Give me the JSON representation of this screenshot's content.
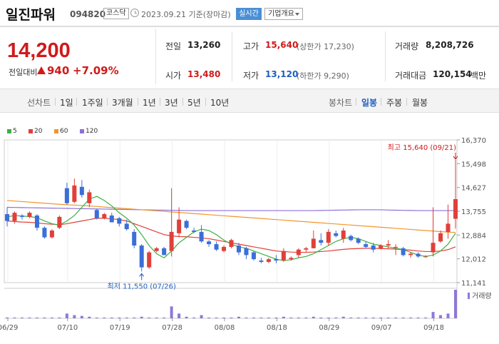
{
  "header": {
    "company": "일진파워",
    "code": "094820",
    "market": "코스닥",
    "date": "2023.09.21 기준(장마감)",
    "realtime_label": "실시간",
    "company_info_label": "기업개요"
  },
  "quote": {
    "price": "14,200",
    "change_label": "전일대비",
    "change": "940",
    "change_pct": "+7.09%",
    "prev_close_label": "전일",
    "prev_close": "13,260",
    "open_label": "시가",
    "open": "13,480",
    "high_label": "고가",
    "high": "15,640",
    "upper_limit": "(상한가 17,230)",
    "low_label": "저가",
    "low": "13,120",
    "lower_limit": "(하한가 9,290)",
    "volume_label": "거래량",
    "volume": "8,208,726",
    "amount_label": "거래대금",
    "amount": "120,154",
    "amount_unit": "백만"
  },
  "tabs": {
    "line_label": "선차트",
    "line_periods": [
      "1일",
      "1주일",
      "3개월",
      "1년",
      "3년",
      "5년",
      "10년"
    ],
    "candle_label": "봉차트",
    "candle_periods": [
      "일봉",
      "주봉",
      "월봉"
    ],
    "active_candle": "일봉"
  },
  "chart_data": {
    "type": "candlestick",
    "legend": [
      {
        "name": "5",
        "color": "#3cb043"
      },
      {
        "name": "20",
        "color": "#e0403a"
      },
      {
        "name": "60",
        "color": "#f0962e"
      },
      {
        "name": "120",
        "color": "#8e6fd8"
      }
    ],
    "y_ticks": [
      "16,370",
      "15,498",
      "14,627",
      "13,755",
      "12,884",
      "12,012",
      "11,141"
    ],
    "ylim": [
      11141,
      16370
    ],
    "x_ticks": [
      "06/29",
      "07/10",
      "07/19",
      "07/28",
      "08/08",
      "08/18",
      "08/29",
      "09/07",
      "09/18"
    ],
    "high_annotation": "최고 15,640 (09/21)",
    "low_annotation": "최저 11,550 (07/26)",
    "volume_label": "거래량",
    "candles": [
      {
        "o": 13650,
        "h": 13900,
        "l": 13200,
        "c": 13400
      },
      {
        "o": 13400,
        "h": 13750,
        "l": 13300,
        "c": 13700
      },
      {
        "o": 13600,
        "h": 13650,
        "l": 13450,
        "c": 13550
      },
      {
        "o": 13550,
        "h": 13750,
        "l": 13500,
        "c": 13700
      },
      {
        "o": 13600,
        "h": 13650,
        "l": 13050,
        "c": 13150
      },
      {
        "o": 13150,
        "h": 13200,
        "l": 12750,
        "c": 12800
      },
      {
        "o": 12800,
        "h": 13100,
        "l": 12750,
        "c": 13050
      },
      {
        "o": 13150,
        "h": 13600,
        "l": 13100,
        "c": 13550
      },
      {
        "o": 14600,
        "h": 14800,
        "l": 14000,
        "c": 14050
      },
      {
        "o": 14100,
        "h": 14950,
        "l": 14050,
        "c": 14700
      },
      {
        "o": 14650,
        "h": 14900,
        "l": 14250,
        "c": 14350
      },
      {
        "o": 14050,
        "h": 14550,
        "l": 13900,
        "c": 14450
      },
      {
        "o": 13800,
        "h": 13850,
        "l": 13450,
        "c": 13500
      },
      {
        "o": 13500,
        "h": 13700,
        "l": 13450,
        "c": 13650
      },
      {
        "o": 13600,
        "h": 13700,
        "l": 13350,
        "c": 13350
      },
      {
        "o": 13500,
        "h": 13550,
        "l": 13200,
        "c": 13300
      },
      {
        "o": 13300,
        "h": 13450,
        "l": 13050,
        "c": 13100
      },
      {
        "o": 13000,
        "h": 13100,
        "l": 12400,
        "c": 12500
      },
      {
        "o": 12500,
        "h": 12550,
        "l": 11550,
        "c": 11700
      },
      {
        "o": 11700,
        "h": 12300,
        "l": 11650,
        "c": 12250
      },
      {
        "o": 12300,
        "h": 12450,
        "l": 12250,
        "c": 12400
      },
      {
        "o": 12400,
        "h": 12450,
        "l": 12150,
        "c": 12150
      },
      {
        "o": 12300,
        "h": 14600,
        "l": 12100,
        "c": 13000
      },
      {
        "o": 12950,
        "h": 13900,
        "l": 12800,
        "c": 13450
      },
      {
        "o": 13400,
        "h": 13450,
        "l": 13100,
        "c": 13150
      },
      {
        "o": 13050,
        "h": 13150,
        "l": 12950,
        "c": 13000
      },
      {
        "o": 13000,
        "h": 13250,
        "l": 12600,
        "c": 12650
      },
      {
        "o": 12650,
        "h": 12700,
        "l": 12450,
        "c": 12550
      },
      {
        "o": 12550,
        "h": 12650,
        "l": 12300,
        "c": 12350
      },
      {
        "o": 12300,
        "h": 12500,
        "l": 12250,
        "c": 12450
      },
      {
        "o": 12450,
        "h": 12750,
        "l": 12400,
        "c": 12700
      },
      {
        "o": 12500,
        "h": 12600,
        "l": 12150,
        "c": 12250
      },
      {
        "o": 12400,
        "h": 12450,
        "l": 12000,
        "c": 12150
      },
      {
        "o": 12250,
        "h": 12300,
        "l": 11950,
        "c": 12000
      },
      {
        "o": 11950,
        "h": 12050,
        "l": 11850,
        "c": 11900
      },
      {
        "o": 11900,
        "h": 12050,
        "l": 11850,
        "c": 12000
      },
      {
        "o": 12000,
        "h": 12150,
        "l": 11850,
        "c": 11950
      },
      {
        "o": 11950,
        "h": 12400,
        "l": 11900,
        "c": 12300
      },
      {
        "o": 12000,
        "h": 12100,
        "l": 11950,
        "c": 12050
      },
      {
        "o": 12150,
        "h": 12400,
        "l": 12050,
        "c": 12350
      },
      {
        "o": 12350,
        "h": 12450,
        "l": 12250,
        "c": 12400
      },
      {
        "o": 12400,
        "h": 13050,
        "l": 12400,
        "c": 12750
      },
      {
        "o": 12700,
        "h": 12950,
        "l": 12500,
        "c": 12600
      },
      {
        "o": 12600,
        "h": 13100,
        "l": 12500,
        "c": 13000
      },
      {
        "o": 12950,
        "h": 13050,
        "l": 12800,
        "c": 12850
      },
      {
        "o": 12750,
        "h": 13150,
        "l": 12600,
        "c": 13050
      },
      {
        "o": 12850,
        "h": 12900,
        "l": 12650,
        "c": 12700
      },
      {
        "o": 12750,
        "h": 12800,
        "l": 12550,
        "c": 12600
      },
      {
        "o": 12550,
        "h": 12650,
        "l": 12400,
        "c": 12450
      },
      {
        "o": 12500,
        "h": 12600,
        "l": 12250,
        "c": 12350
      },
      {
        "o": 12400,
        "h": 12550,
        "l": 12350,
        "c": 12500
      },
      {
        "o": 12500,
        "h": 12700,
        "l": 12400,
        "c": 12550
      },
      {
        "o": 12450,
        "h": 12550,
        "l": 12150,
        "c": 12450
      },
      {
        "o": 12400,
        "h": 12450,
        "l": 12100,
        "c": 12150
      },
      {
        "o": 12150,
        "h": 12250,
        "l": 12050,
        "c": 12200
      },
      {
        "o": 12200,
        "h": 12250,
        "l": 12050,
        "c": 12100
      },
      {
        "o": 12100,
        "h": 12150,
        "l": 12050,
        "c": 12100
      },
      {
        "o": 12250,
        "h": 13900,
        "l": 12100,
        "c": 12600
      },
      {
        "o": 12650,
        "h": 13050,
        "l": 12600,
        "c": 12950
      },
      {
        "o": 13000,
        "h": 14000,
        "l": 12750,
        "c": 13300
      },
      {
        "o": 13480,
        "h": 15640,
        "l": 13120,
        "c": 14200
      }
    ],
    "ma5": [
      13550,
      13600,
      13580,
      13560,
      13520,
      13400,
      13300,
      13250,
      13400,
      13600,
      13900,
      14200,
      14300,
      14150,
      13950,
      13700,
      13500,
      13250,
      12900,
      12500,
      12200,
      12050,
      12300,
      12600,
      12800,
      13000,
      13100,
      13050,
      12900,
      12700,
      12550,
      12450,
      12400,
      12300,
      12200,
      12100,
      12000,
      11950,
      11980,
      12050,
      12100,
      12200,
      12350,
      12500,
      12650,
      12750,
      12800,
      12750,
      12650,
      12550,
      12500,
      12450,
      12400,
      12350,
      12250,
      12150,
      12100,
      12150,
      12300,
      12550,
      12950
    ],
    "ma20": [
      13400,
      13380,
      13360,
      13350,
      13330,
      13300,
      13280,
      13260,
      13300,
      13350,
      13400,
      13450,
      13500,
      13500,
      13480,
      13450,
      13400,
      13300,
      13200,
      13100,
      13000,
      12900,
      12850,
      12830,
      12820,
      12800,
      12780,
      12750,
      12700,
      12650,
      12600,
      12550,
      12500,
      12450,
      12400,
      12350,
      12300,
      12280,
      12260,
      12250,
      12250,
      12260,
      12280,
      12300,
      12330,
      12360,
      12380,
      12390,
      12400,
      12400,
      12390,
      12380,
      12370,
      12350,
      12330,
      12300,
      12280,
      12280,
      12300,
      12350,
      12450
    ],
    "ma60": [
      14150,
      14130,
      14110,
      14090,
      14070,
      14050,
      14030,
      14010,
      13995,
      13980,
      13965,
      13950,
      13930,
      13910,
      13890,
      13870,
      13850,
      13830,
      13810,
      13790,
      13770,
      13750,
      13730,
      13710,
      13690,
      13670,
      13650,
      13630,
      13610,
      13590,
      13570,
      13550,
      13530,
      13510,
      13490,
      13470,
      13450,
      13430,
      13410,
      13390,
      13370,
      13350,
      13330,
      13310,
      13290,
      13270,
      13250,
      13230,
      13210,
      13190,
      13170,
      13150,
      13130,
      13110,
      13090,
      13070,
      13050,
      13030,
      13010,
      12990,
      12980
    ],
    "ma120": [
      13900,
      13895,
      13890,
      13885,
      13880,
      13875,
      13870,
      13865,
      13860,
      13855,
      13850,
      13845,
      13840,
      13835,
      13830,
      13825,
      13820,
      13815,
      13810,
      13805,
      13800,
      13795,
      13790,
      13785,
      13780,
      13780,
      13780,
      13780,
      13780,
      13780,
      13780,
      13780,
      13780,
      13780,
      13780,
      13780,
      13780,
      13780,
      13780,
      13780,
      13780,
      13780,
      13785,
      13790,
      13795,
      13800,
      13805,
      13810,
      13810,
      13810,
      13810,
      13800,
      13795,
      13790,
      13785,
      13780,
      13780,
      13780,
      13780,
      13780,
      13780
    ],
    "volumes": [
      1,
      1,
      1,
      1,
      1,
      1,
      1,
      1,
      6,
      4,
      3,
      2,
      1,
      1,
      1,
      1,
      1,
      1,
      2,
      1,
      1,
      1,
      15,
      6,
      2,
      1,
      4,
      1,
      1,
      1,
      1,
      2,
      1,
      1,
      1,
      1,
      1,
      2,
      1,
      1,
      1,
      2,
      1,
      1,
      1,
      2,
      1,
      1,
      1,
      1,
      1,
      1,
      1,
      1,
      1,
      1,
      1,
      8,
      4,
      6,
      36
    ]
  }
}
